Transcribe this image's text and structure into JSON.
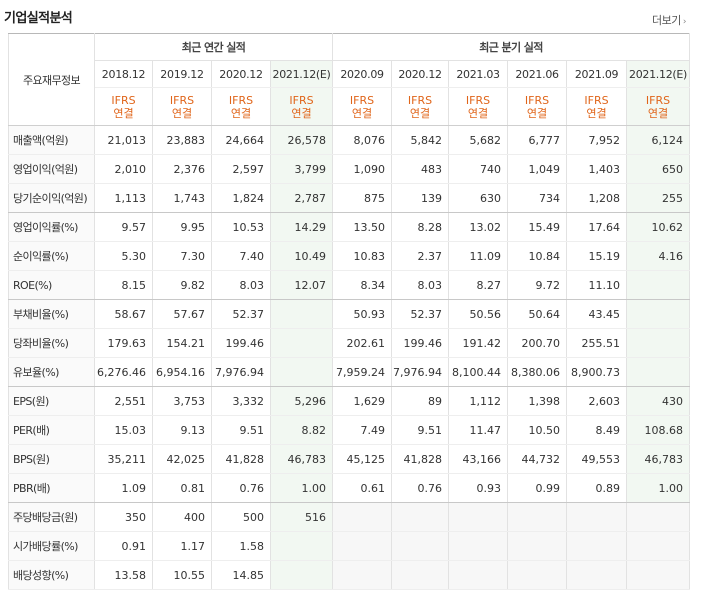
{
  "title": "기업실적분석",
  "more_label": "더보기",
  "row_label_header": "주요재무정보",
  "annual_header": "최근 연간 실적",
  "quarter_header": "최근 분기 실적",
  "periods": [
    "2018.12",
    "2019.12",
    "2020.12",
    "2021.12(E)",
    "2020.09",
    "2020.12",
    "2021.03",
    "2021.06",
    "2021.09",
    "2021.12(E)"
  ],
  "ifrs_label": "IFRS",
  "consol_label": "연결",
  "rows": [
    {
      "label": "매출액(억원)",
      "values": [
        "21,013",
        "23,883",
        "24,664",
        "26,578",
        "8,076",
        "5,842",
        "5,682",
        "6,777",
        "7,952",
        "6,124"
      ]
    },
    {
      "label": "영업이익(억원)",
      "values": [
        "2,010",
        "2,376",
        "2,597",
        "3,799",
        "1,090",
        "483",
        "740",
        "1,049",
        "1,403",
        "650"
      ]
    },
    {
      "label": "당기순이익(억원)",
      "values": [
        "1,113",
        "1,743",
        "1,824",
        "2,787",
        "875",
        "139",
        "630",
        "734",
        "1,208",
        "255"
      ]
    },
    {
      "label": "영업이익률(%)",
      "values": [
        "9.57",
        "9.95",
        "10.53",
        "14.29",
        "13.50",
        "8.28",
        "13.02",
        "15.49",
        "17.64",
        "10.62"
      ]
    },
    {
      "label": "순이익률(%)",
      "values": [
        "5.30",
        "7.30",
        "7.40",
        "10.49",
        "10.83",
        "2.37",
        "11.09",
        "10.84",
        "15.19",
        "4.16"
      ]
    },
    {
      "label": "ROE(%)",
      "values": [
        "8.15",
        "9.82",
        "8.03",
        "12.07",
        "8.34",
        "8.03",
        "8.27",
        "9.72",
        "11.10",
        ""
      ]
    },
    {
      "label": "부채비율(%)",
      "values": [
        "58.67",
        "57.67",
        "52.37",
        "",
        "50.93",
        "52.37",
        "50.56",
        "50.64",
        "43.45",
        ""
      ]
    },
    {
      "label": "당좌비율(%)",
      "values": [
        "179.63",
        "154.21",
        "199.46",
        "",
        "202.61",
        "199.46",
        "191.42",
        "200.70",
        "255.51",
        ""
      ]
    },
    {
      "label": "유보율(%)",
      "values": [
        "6,276.46",
        "6,954.16",
        "7,976.94",
        "",
        "7,959.24",
        "7,976.94",
        "8,100.44",
        "8,380.06",
        "8,900.73",
        ""
      ]
    },
    {
      "label": "EPS(원)",
      "values": [
        "2,551",
        "3,753",
        "3,332",
        "5,296",
        "1,629",
        "89",
        "1,112",
        "1,398",
        "2,603",
        "430"
      ]
    },
    {
      "label": "PER(배)",
      "values": [
        "15.03",
        "9.13",
        "9.51",
        "8.82",
        "7.49",
        "9.51",
        "11.47",
        "10.50",
        "8.49",
        "108.68"
      ]
    },
    {
      "label": "BPS(원)",
      "values": [
        "35,211",
        "42,025",
        "41,828",
        "46,783",
        "45,125",
        "41,828",
        "43,166",
        "44,732",
        "49,553",
        "46,783"
      ]
    },
    {
      "label": "PBR(배)",
      "values": [
        "1.09",
        "0.81",
        "0.76",
        "1.00",
        "0.61",
        "0.76",
        "0.93",
        "0.99",
        "0.89",
        "1.00"
      ]
    },
    {
      "label": "주당배당금(원)",
      "values": [
        "350",
        "400",
        "500",
        "516",
        "",
        "",
        "",
        "",
        "",
        ""
      ]
    },
    {
      "label": "시가배당률(%)",
      "values": [
        "0.91",
        "1.17",
        "1.58",
        "",
        "",
        "",
        "",
        "",
        "",
        ""
      ]
    },
    {
      "label": "배당성향(%)",
      "values": [
        "13.58",
        "10.55",
        "14.85",
        "",
        "",
        "",
        "",
        "",
        "",
        ""
      ]
    }
  ]
}
